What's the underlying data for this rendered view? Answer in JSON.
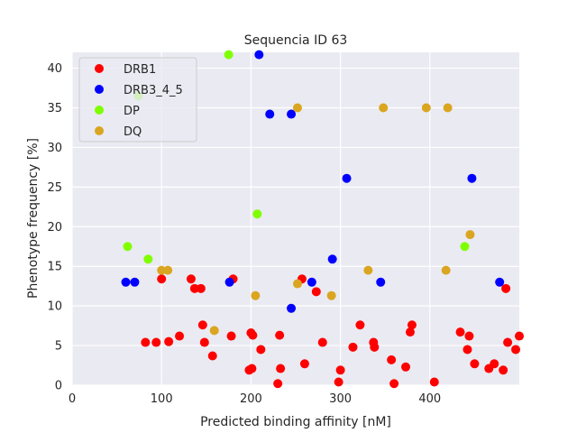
{
  "chart_data": {
    "type": "scatter",
    "title": "Sequencia ID 63",
    "xlabel": "Predicted binding affinity [nM]",
    "ylabel": "Phenotype frequency [%]",
    "xlim": [
      0,
      500
    ],
    "ylim": [
      0,
      42
    ],
    "xticks": [
      0,
      100,
      200,
      300,
      400
    ],
    "yticks": [
      0,
      5,
      10,
      15,
      20,
      25,
      30,
      35,
      40
    ],
    "grid": true,
    "legend_position": "top-left",
    "series": [
      {
        "name": "DRB1",
        "color": "#ff0000",
        "points": [
          [
            82,
            5.4
          ],
          [
            94,
            5.4
          ],
          [
            100,
            13.4
          ],
          [
            108,
            5.5
          ],
          [
            120,
            6.2
          ],
          [
            133,
            13.4
          ],
          [
            137,
            12.2
          ],
          [
            144,
            12.2
          ],
          [
            146,
            7.6
          ],
          [
            148,
            5.4
          ],
          [
            157,
            3.7
          ],
          [
            180,
            13.4
          ],
          [
            178,
            6.2
          ],
          [
            198,
            1.9
          ],
          [
            200,
            6.6
          ],
          [
            201,
            2.1
          ],
          [
            202,
            6.3
          ],
          [
            211,
            4.5
          ],
          [
            230,
            0.2
          ],
          [
            232,
            6.3
          ],
          [
            233,
            2.1
          ],
          [
            257,
            13.4
          ],
          [
            260,
            2.7
          ],
          [
            273,
            11.8
          ],
          [
            280,
            5.4
          ],
          [
            298,
            0.4
          ],
          [
            300,
            1.9
          ],
          [
            314,
            4.8
          ],
          [
            322,
            7.6
          ],
          [
            337,
            5.4
          ],
          [
            338,
            4.8
          ],
          [
            357,
            3.2
          ],
          [
            360,
            0.2
          ],
          [
            373,
            2.3
          ],
          [
            378,
            6.7
          ],
          [
            380,
            7.6
          ],
          [
            405,
            0.4
          ],
          [
            434,
            6.7
          ],
          [
            442,
            4.5
          ],
          [
            444,
            6.2
          ],
          [
            450,
            2.7
          ],
          [
            466,
            2.1
          ],
          [
            472,
            2.7
          ],
          [
            482,
            1.9
          ],
          [
            485,
            12.2
          ],
          [
            487,
            5.4
          ],
          [
            496,
            4.5
          ],
          [
            500,
            6.2
          ]
        ]
      },
      {
        "name": "DRB3_4_5",
        "color": "#0000ff",
        "points": [
          [
            60,
            13.0
          ],
          [
            70,
            13.0
          ],
          [
            176,
            13.0
          ],
          [
            209,
            41.7
          ],
          [
            221,
            34.2
          ],
          [
            245,
            34.2
          ],
          [
            245,
            9.7
          ],
          [
            268,
            13.0
          ],
          [
            291,
            15.9
          ],
          [
            307,
            26.1
          ],
          [
            345,
            13.0
          ],
          [
            447,
            26.1
          ],
          [
            478,
            13.0
          ]
        ]
      },
      {
        "name": "DP",
        "color": "#7fff00",
        "points": [
          [
            62,
            17.5
          ],
          [
            74,
            36.5
          ],
          [
            85,
            15.9
          ],
          [
            175,
            41.7
          ],
          [
            207,
            21.6
          ],
          [
            439,
            17.5
          ]
        ]
      },
      {
        "name": "DQ",
        "color": "#daa520",
        "points": [
          [
            100,
            14.5
          ],
          [
            107,
            14.5
          ],
          [
            159,
            6.9
          ],
          [
            205,
            11.3
          ],
          [
            252,
            35.0
          ],
          [
            252,
            12.8
          ],
          [
            290,
            11.3
          ],
          [
            331,
            14.5
          ],
          [
            348,
            35.0
          ],
          [
            396,
            35.0
          ],
          [
            420,
            35.0
          ],
          [
            418,
            14.5
          ],
          [
            445,
            19.0
          ]
        ]
      }
    ]
  }
}
